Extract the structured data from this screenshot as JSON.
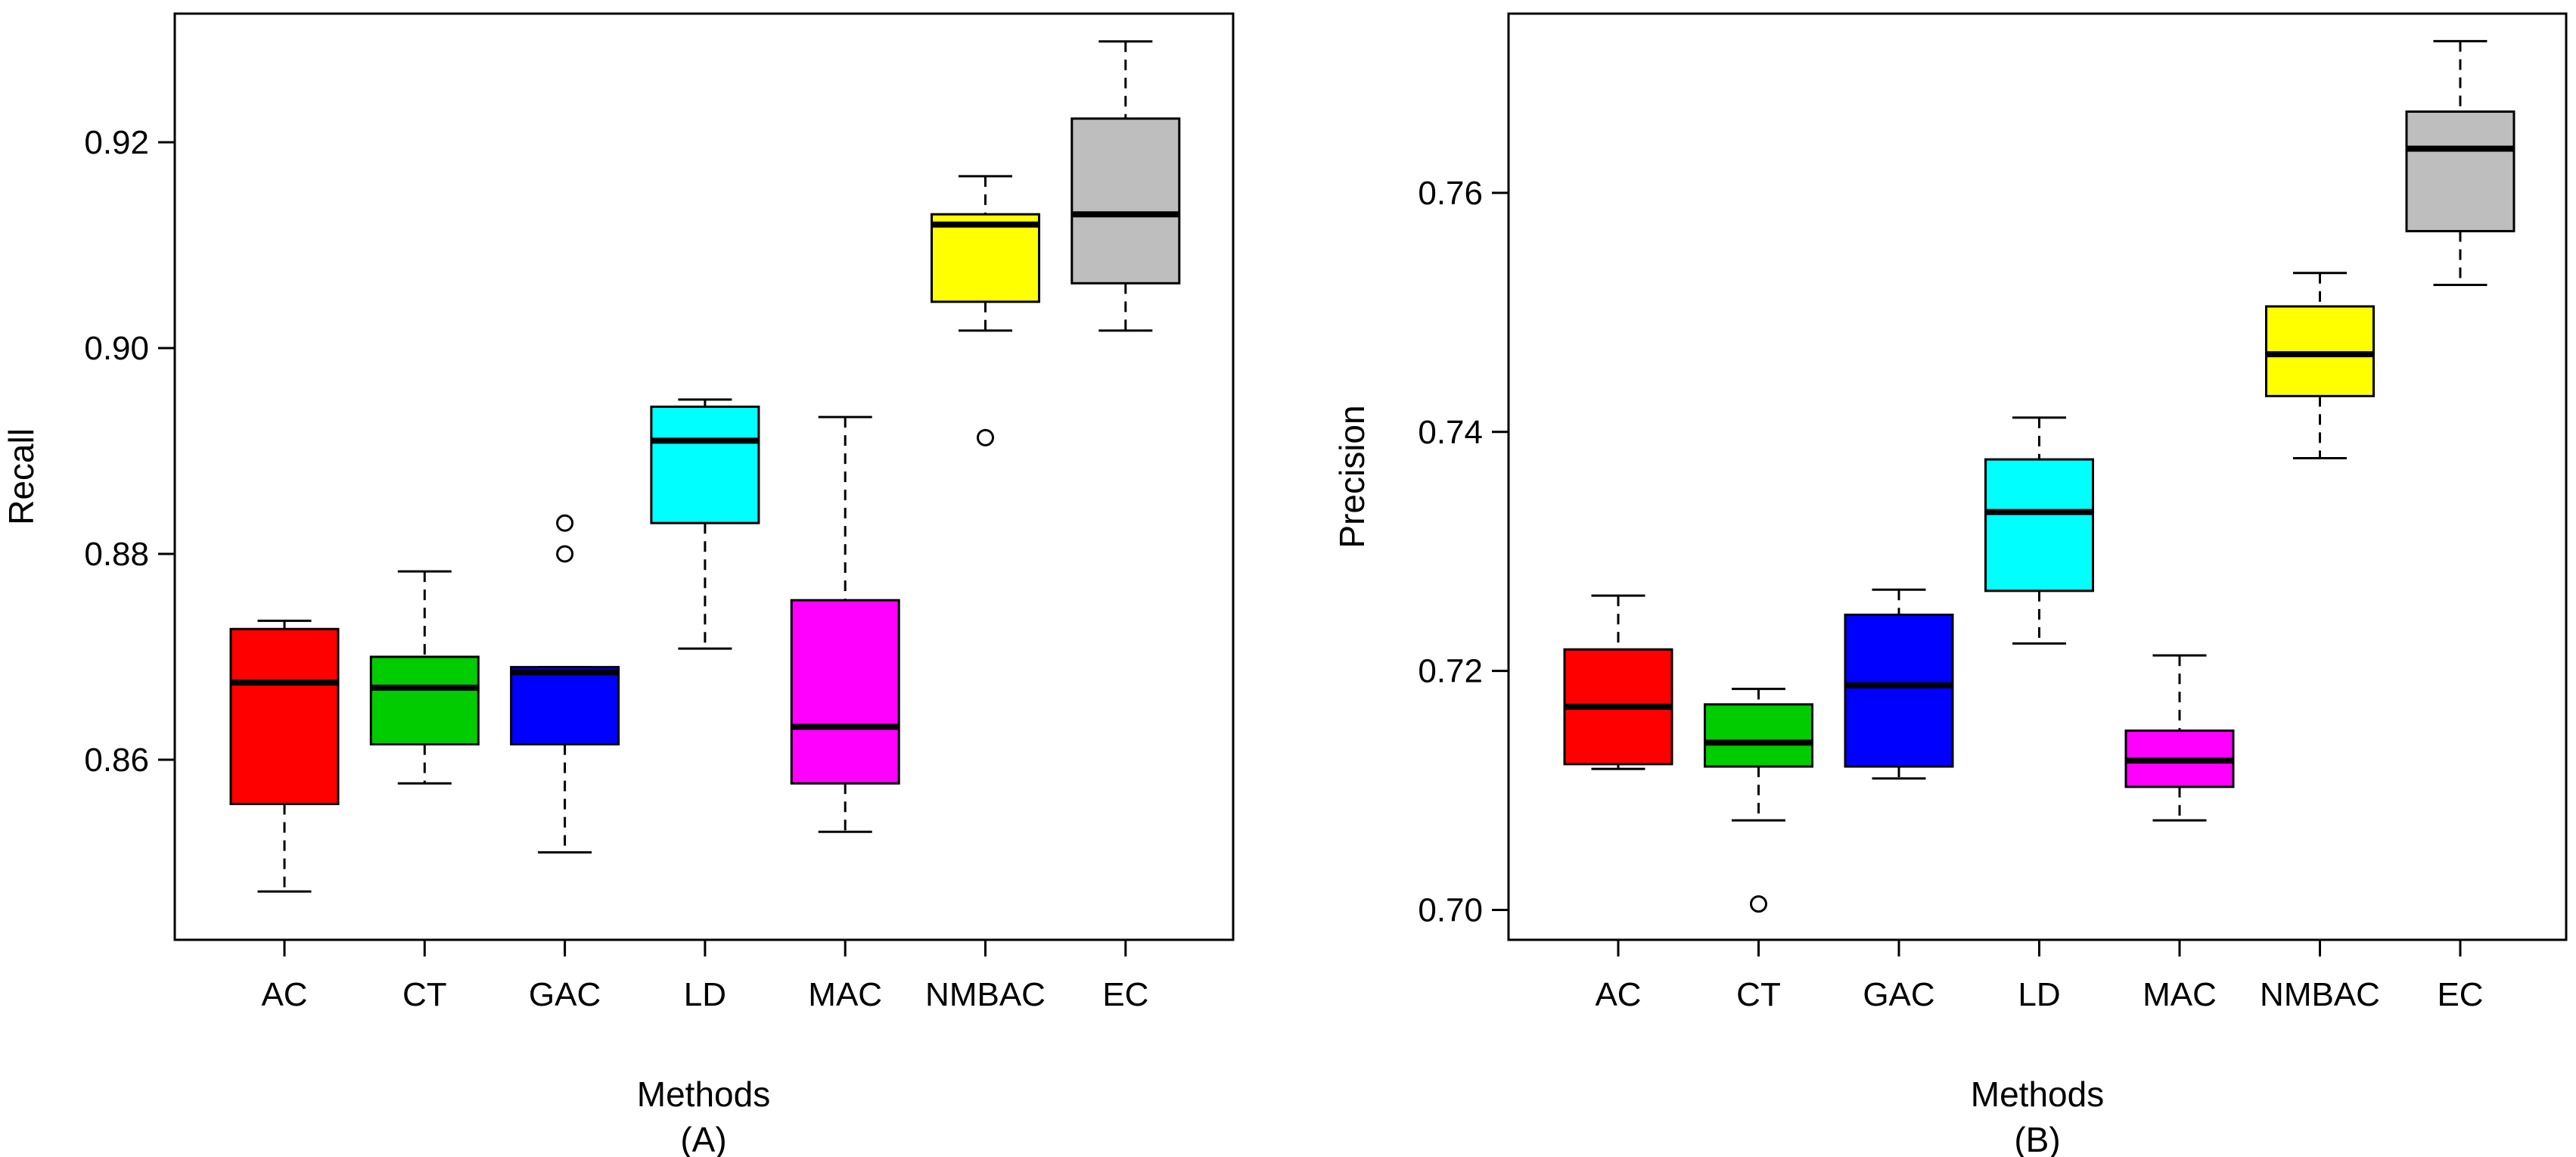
{
  "chart_data": [
    {
      "type": "boxplot",
      "panel_label": "(A)",
      "xlabel": "Methods",
      "ylabel": "Recall",
      "ylim": [
        0.8425,
        0.9325
      ],
      "yticks": [
        0.86,
        0.88,
        0.9,
        0.92
      ],
      "ytick_labels": [
        "0.86",
        "0.88",
        "0.90",
        "0.92"
      ],
      "categories": [
        "AC",
        "CT",
        "GAC",
        "LD",
        "MAC",
        "NMBAC",
        "EC"
      ],
      "colors": [
        "#ff0000",
        "#00cc00",
        "#0000ff",
        "#00ffff",
        "#ff00ff",
        "#ffff00",
        "#bebebe"
      ],
      "boxes": [
        {
          "min": 0.8472,
          "q1": 0.8557,
          "median": 0.8675,
          "q3": 0.8727,
          "max": 0.8735,
          "outliers": []
        },
        {
          "min": 0.8577,
          "q1": 0.8615,
          "median": 0.867,
          "q3": 0.87,
          "max": 0.8783,
          "outliers": []
        },
        {
          "min": 0.851,
          "q1": 0.8615,
          "median": 0.8685,
          "q3": 0.869,
          "max": 0.869,
          "outliers": [
            0.88,
            0.883
          ]
        },
        {
          "min": 0.8708,
          "q1": 0.883,
          "median": 0.891,
          "q3": 0.8943,
          "max": 0.895,
          "outliers": []
        },
        {
          "min": 0.853,
          "q1": 0.8577,
          "median": 0.8632,
          "q3": 0.8755,
          "max": 0.8933,
          "outliers": []
        },
        {
          "min": 0.9017,
          "q1": 0.9045,
          "median": 0.912,
          "q3": 0.913,
          "max": 0.9167,
          "outliers": [
            0.8913
          ]
        },
        {
          "min": 0.9017,
          "q1": 0.9063,
          "median": 0.913,
          "q3": 0.9223,
          "max": 0.9298,
          "outliers": []
        }
      ]
    },
    {
      "type": "boxplot",
      "panel_label": "(B)",
      "xlabel": "Methods",
      "ylabel": "Precision",
      "ylim": [
        0.6975,
        0.775
      ],
      "yticks": [
        0.7,
        0.72,
        0.74,
        0.76
      ],
      "ytick_labels": [
        "0.70",
        "0.72",
        "0.74",
        "0.76"
      ],
      "categories": [
        "AC",
        "CT",
        "GAC",
        "LD",
        "MAC",
        "NMBAC",
        "EC"
      ],
      "colors": [
        "#ff0000",
        "#00cc00",
        "#0000ff",
        "#00ffff",
        "#ff00ff",
        "#ffff00",
        "#bebebe"
      ],
      "boxes": [
        {
          "min": 0.7118,
          "q1": 0.7122,
          "median": 0.717,
          "q3": 0.7218,
          "max": 0.7263,
          "outliers": []
        },
        {
          "min": 0.7075,
          "q1": 0.712,
          "median": 0.714,
          "q3": 0.7172,
          "max": 0.7185,
          "outliers": [
            0.7005
          ]
        },
        {
          "min": 0.711,
          "q1": 0.712,
          "median": 0.7188,
          "q3": 0.7247,
          "max": 0.7268,
          "outliers": []
        },
        {
          "min": 0.7223,
          "q1": 0.7267,
          "median": 0.7333,
          "q3": 0.7377,
          "max": 0.7412,
          "outliers": []
        },
        {
          "min": 0.7075,
          "q1": 0.7103,
          "median": 0.7125,
          "q3": 0.715,
          "max": 0.7213,
          "outliers": []
        },
        {
          "min": 0.7378,
          "q1": 0.743,
          "median": 0.7465,
          "q3": 0.7505,
          "max": 0.7533,
          "outliers": []
        },
        {
          "min": 0.7523,
          "q1": 0.7568,
          "median": 0.7637,
          "q3": 0.7668,
          "max": 0.7727,
          "outliers": []
        }
      ]
    }
  ]
}
